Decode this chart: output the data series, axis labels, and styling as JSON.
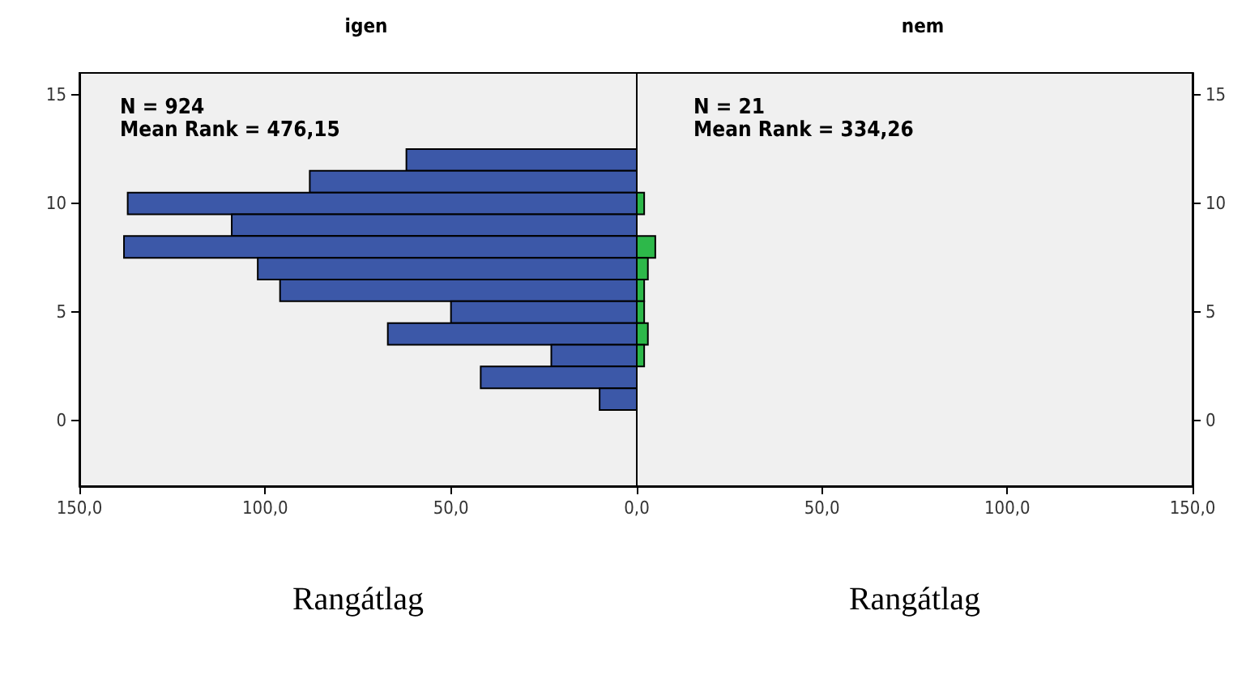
{
  "chart_data": [
    {
      "type": "bar",
      "orientation": "horizontal",
      "title": "igen",
      "xlabel": "Rangátlag",
      "annotations": [
        "N = 924",
        "Mean Rank = 476,15"
      ],
      "x": [
        12,
        11,
        10,
        9,
        8,
        7,
        6,
        5,
        4,
        3,
        2,
        1
      ],
      "values": [
        62,
        88,
        137,
        109,
        138,
        102,
        96,
        50,
        67,
        23,
        42,
        10
      ],
      "color": "#3c58a8",
      "xlim": [
        150,
        0
      ],
      "xticks": [
        {
          "value": 150,
          "label": "150,0"
        },
        {
          "value": 100,
          "label": "100,0"
        },
        {
          "value": 50,
          "label": "50,0"
        },
        {
          "value": 0,
          "label": "0,0"
        }
      ],
      "ylim": [
        -3,
        16
      ],
      "yticks": [
        0,
        5,
        10,
        15
      ],
      "grid": false
    },
    {
      "type": "bar",
      "orientation": "horizontal",
      "title": "nem",
      "xlabel": "Rangátlag",
      "annotations": [
        "N = 21",
        "Mean Rank = 334,26"
      ],
      "x": [
        10,
        8,
        7,
        6,
        5,
        4,
        3
      ],
      "values": [
        2,
        5,
        3,
        2,
        2,
        3,
        2
      ],
      "color": "#2db84a",
      "xlim": [
        0,
        150
      ],
      "xticks": [
        {
          "value": 0,
          "label": null
        },
        {
          "value": 50,
          "label": "50,0"
        },
        {
          "value": 100,
          "label": "100,0"
        },
        {
          "value": 150,
          "label": "150,0"
        }
      ],
      "ylim": [
        -3,
        16
      ],
      "yticks": [
        0,
        5,
        10,
        15
      ],
      "grid": false
    }
  ]
}
